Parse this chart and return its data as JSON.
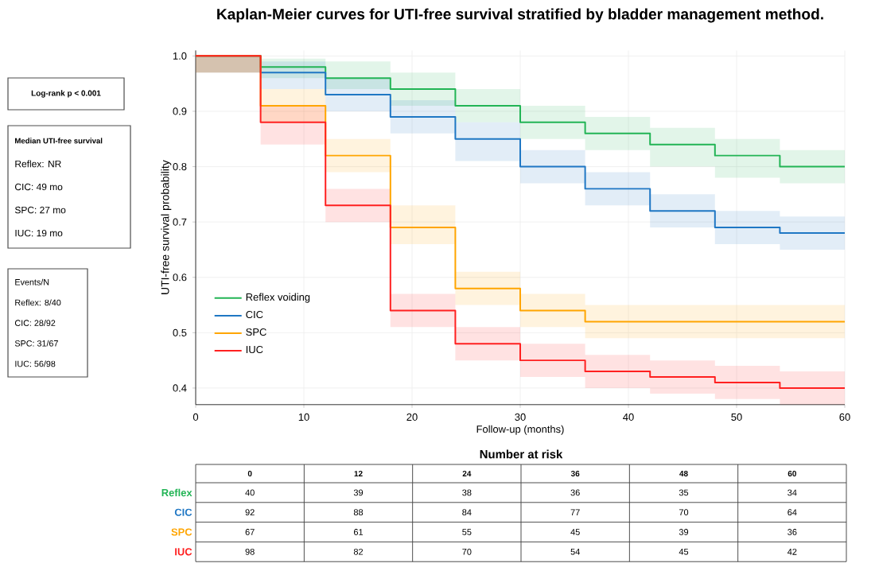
{
  "chart_data": [
    {
      "type": "step",
      "title": "Kaplan-Meier curves for UTI-free survival stratified by bladder management method.",
      "xlabel": "Follow-up (months)",
      "ylabel": "UTI-free survival probability",
      "x": [
        0,
        6,
        12,
        18,
        24,
        30,
        36,
        42,
        48,
        54,
        60
      ],
      "series": [
        {
          "name": "Reflex voiding",
          "color": "#22b455",
          "values": [
            1.0,
            0.98,
            0.96,
            0.94,
            0.91,
            0.88,
            0.86,
            0.84,
            0.82,
            0.8,
            0.8
          ],
          "lower": [
            0.97,
            0.96,
            0.94,
            0.91,
            0.88,
            0.85,
            0.83,
            0.8,
            0.78,
            0.77,
            0.77
          ],
          "upper": [
            1.0,
            0.995,
            0.99,
            0.97,
            0.94,
            0.91,
            0.89,
            0.87,
            0.85,
            0.83,
            0.83
          ]
        },
        {
          "name": "CIC",
          "color": "#1f77c4",
          "values": [
            1.0,
            0.97,
            0.93,
            0.89,
            0.85,
            0.8,
            0.76,
            0.72,
            0.69,
            0.68,
            0.68
          ],
          "lower": [
            0.97,
            0.94,
            0.9,
            0.86,
            0.81,
            0.77,
            0.73,
            0.69,
            0.66,
            0.65,
            0.65
          ],
          "upper": [
            1.0,
            0.99,
            0.96,
            0.92,
            0.88,
            0.83,
            0.79,
            0.75,
            0.72,
            0.71,
            0.71
          ]
        },
        {
          "name": "SPC",
          "color": "#ffa500",
          "values": [
            1.0,
            0.91,
            0.82,
            0.69,
            0.58,
            0.54,
            0.52,
            0.52,
            0.52,
            0.52,
            0.52
          ],
          "lower": [
            0.97,
            0.88,
            0.79,
            0.66,
            0.55,
            0.51,
            0.49,
            0.49,
            0.49,
            0.49,
            0.49
          ],
          "upper": [
            1.0,
            0.94,
            0.85,
            0.73,
            0.61,
            0.57,
            0.55,
            0.55,
            0.55,
            0.55,
            0.55
          ]
        },
        {
          "name": "IUC",
          "color": "#ff2020",
          "values": [
            1.0,
            0.88,
            0.73,
            0.54,
            0.48,
            0.45,
            0.43,
            0.42,
            0.41,
            0.4,
            0.4
          ],
          "lower": [
            0.97,
            0.84,
            0.7,
            0.51,
            0.45,
            0.42,
            0.4,
            0.39,
            0.38,
            0.37,
            0.37
          ],
          "upper": [
            1.0,
            0.91,
            0.76,
            0.57,
            0.51,
            0.48,
            0.46,
            0.45,
            0.44,
            0.43,
            0.43
          ]
        }
      ],
      "xlim": [
        0,
        60
      ],
      "ylim": [
        0.37,
        1.01
      ],
      "xticks": [
        0,
        10,
        20,
        30,
        40,
        50,
        60
      ],
      "yticks": [
        0.4,
        0.5,
        0.6,
        0.7,
        0.8,
        0.9,
        {
          "value": 1.0,
          "label": "1.0"
        }
      ],
      "grid": true,
      "legend": "bottom left",
      "line_style": "solid",
      "marker": "none"
    },
    {
      "type": "other",
      "annotations": [
        "Log-rank p < 0.001"
      ]
    },
    {
      "type": "other",
      "title": "Median UTI-free survival",
      "annotations": [
        "Reflex:  NR",
        "CIC:  49 mo",
        "SPC:  27 mo",
        "IUC:  19 mo"
      ]
    },
    {
      "type": "other",
      "annotations": [
        "Events/N",
        "Reflex: 8/40",
        "CIC: 28/92",
        "SPC: 31/67",
        "IUC: 56/98"
      ]
    },
    {
      "type": "heatmap",
      "title": "Number at risk",
      "categories": [
        "0",
        "12",
        "24",
        "36",
        "48",
        "60"
      ],
      "y_categories": [
        "Reflex",
        "CIC",
        "SPC",
        "IUC"
      ],
      "colors": [
        "#22b455",
        "#1f77c4",
        "#ffa500",
        "#ff2020"
      ],
      "cells": [
        [
          40,
          39,
          38,
          36,
          35,
          34
        ],
        [
          92,
          88,
          84,
          77,
          70,
          64
        ],
        [
          67,
          61,
          55,
          45,
          39,
          36
        ],
        [
          98,
          82,
          70,
          54,
          45,
          42
        ]
      ],
      "data_labels": true
    }
  ]
}
